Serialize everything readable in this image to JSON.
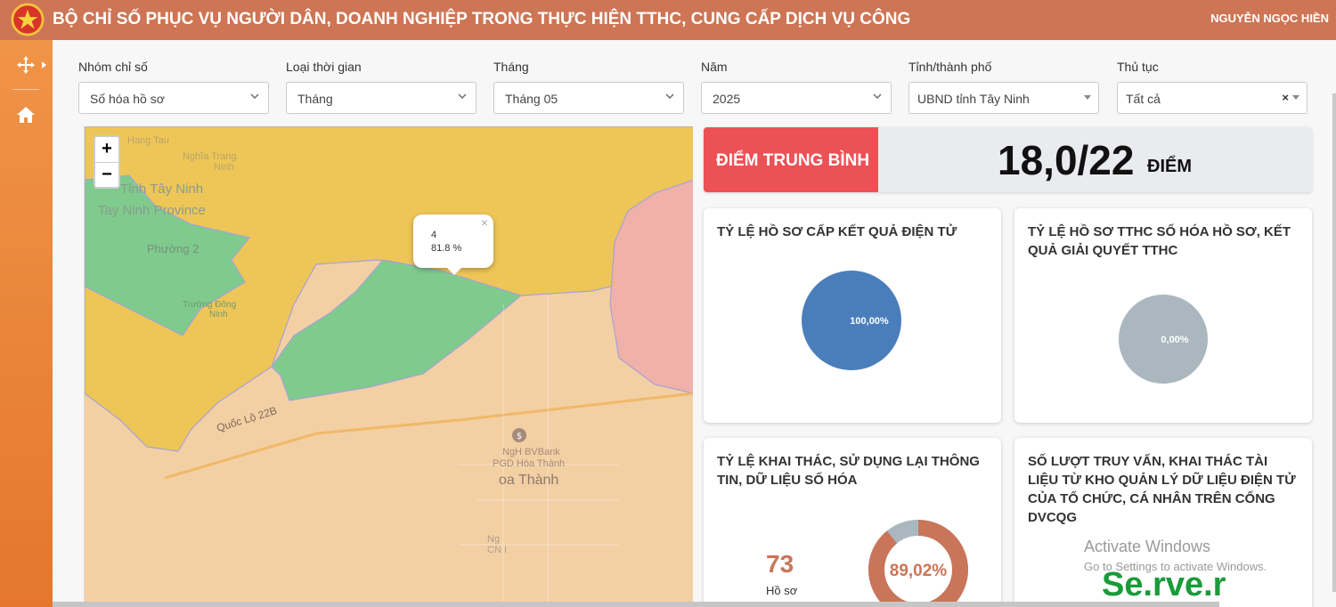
{
  "header": {
    "title": "BỘ CHỈ SỐ PHỤC VỤ NGƯỜI DÂN, DOANH NGHIỆP TRONG THỰC HIỆN TTHC, CUNG CẤP DỊCH VỤ CÔNG",
    "user": "NGUYỄN NGỌC HIỀN",
    "logo_icon": "national-emblem-icon"
  },
  "sidebar": {
    "items": [
      {
        "icon": "move-arrows-icon"
      },
      {
        "icon": "home-icon"
      }
    ],
    "collapse_icon": "chevron-right-icon"
  },
  "filters": [
    {
      "label": "Nhóm chỉ số",
      "value": "Số hóa hồ sơ"
    },
    {
      "label": "Loại thời gian",
      "value": "Tháng"
    },
    {
      "label": "Tháng",
      "value": "Tháng 05"
    },
    {
      "label": "Năm",
      "value": "2025"
    },
    {
      "label": "Tỉnh/thành phố",
      "value": "UBND tỉnh Tây Ninh"
    },
    {
      "label": "Thủ tục",
      "value": "Tất cả",
      "clear": "×"
    }
  ],
  "map": {
    "zoom_in": "+",
    "zoom_out": "−",
    "popup": {
      "title": "4",
      "value": "81.8 %",
      "close": "×"
    },
    "labels": {
      "province_vi": "Tỉnh Tây Ninh",
      "province_en": "Tay Ninh Province",
      "ward": "Phường 2",
      "road": "Quốc Lộ 22B",
      "bank_line1": "NgH BVBank",
      "bank_line2": "PGD Hòa Thành",
      "town": "oa Thành",
      "poi_line1": "Ng",
      "poi_line2": "CN I",
      "faded_top1": "Hang Tau",
      "faded_top2": "Nghĩa Trang",
      "faded_top3": "Ninh",
      "faded_mid1": "Trường Đông",
      "faded_mid2": "Ninh"
    },
    "colors": {
      "yellow": "#eec657",
      "green": "#7fcb8d",
      "orange": "#f3cfa4",
      "red": "#efb1a9"
    }
  },
  "score": {
    "label": "ĐIỂM TRUNG BÌNH",
    "value": "18,0/22",
    "unit": "ĐIỂM",
    "accent": "#ec5156"
  },
  "kpis": {
    "electronic_results": {
      "title": "TỶ LỆ HỒ SƠ CẤP KẾT QUẢ ĐIỆN TỬ",
      "percent_label": "100,00%",
      "fraction": 1.0,
      "color": "#4a7ebb"
    },
    "digitized_records": {
      "title": "TỶ LỆ HỒ SƠ TTHC SỐ HÓA HỒ SƠ, KẾT QUẢ GIẢI QUYẾT TTHC",
      "percent_label": "0,00%",
      "fraction": 0.0,
      "color": "#aab7bf"
    },
    "data_reuse": {
      "title": "TỶ LỆ KHAI THÁC, SỬ DỤNG LẠI THÔNG TIN, DỮ LIỆU SỐ HÓA",
      "count": "73",
      "count_unit": "Hồ sơ",
      "percent_label": "89,02%",
      "fraction": 0.8902,
      "color": "#c9755a",
      "rest_color": "#aab7bf"
    },
    "queries": {
      "title": "SỐ LƯỢT TRUY VẤN, KHAI THÁC TÀI LIỆU TỪ KHO QUẢN LÝ DỮ LIỆU ĐIỆN TỬ CỦA TỔ CHỨC, CÁ NHÂN TRÊN CỔNG DVCQG"
    }
  },
  "watermark": {
    "line1": "Activate Windows",
    "line2": "Go to Settings to activate Windows.",
    "overlay": "Se.rve.r"
  }
}
